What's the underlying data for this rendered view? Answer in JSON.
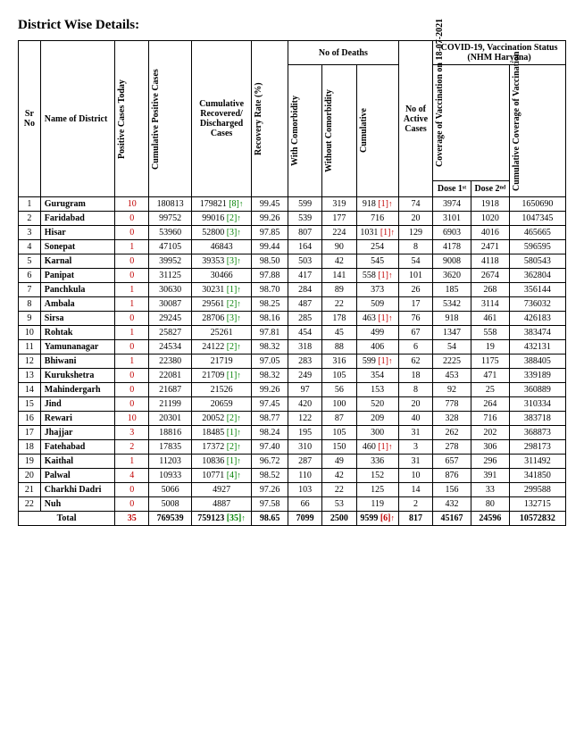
{
  "title": "District Wise Details:",
  "headers": {
    "sr": "Sr No",
    "district": "Name of District",
    "pct": "Positive Cases Today",
    "cpc": "Cumulative Positive Cases",
    "crd": "Cumulative Recovered/ Discharged Cases",
    "rr": "Recovery Rate (%)",
    "deaths_group": "No of Deaths",
    "wc": "With Comorbidity",
    "woc": "Without Comorbidity",
    "cum": "Cumulative",
    "active": "No of Active Cases",
    "vacc_group": "COVID-19, Vaccination Status (NHM Haryana)",
    "cov_on": "Coverage of Vaccination on 18-07-2021",
    "d1": "Dose 1ˢᵗ",
    "d2": "Dose 2ⁿᵈ",
    "ccv": "Cumulative Coverage of Vaccination"
  },
  "rows": [
    {
      "sr": 1,
      "dist": "Gurugram",
      "pct": "10",
      "pct_c": "red",
      "cpc": "180813",
      "crd": "179821",
      "crd_note": "[8]",
      "rr": "99.45",
      "wc": "599",
      "woc": "319",
      "cum": "918",
      "cum_note": "[1]",
      "cum_c": "red",
      "act": "74",
      "d1": "3974",
      "d2": "1918",
      "ccv": "1650690"
    },
    {
      "sr": 2,
      "dist": "Faridabad",
      "pct": "0",
      "pct_c": "red",
      "cpc": "99752",
      "crd": "99016",
      "crd_note": "[2]",
      "rr": "99.26",
      "wc": "539",
      "woc": "177",
      "cum": "716",
      "act": "20",
      "d1": "3101",
      "d2": "1020",
      "ccv": "1047345"
    },
    {
      "sr": 3,
      "dist": "Hisar",
      "pct": "0",
      "pct_c": "red",
      "cpc": "53960",
      "crd": "52800",
      "crd_note": "[3]",
      "rr": "97.85",
      "wc": "807",
      "woc": "224",
      "cum": "1031",
      "cum_note": "[1]",
      "cum_c": "red",
      "act": "129",
      "d1": "6903",
      "d2": "4016",
      "ccv": "465665"
    },
    {
      "sr": 4,
      "dist": "Sonepat",
      "pct": "1",
      "pct_c": "red",
      "cpc": "47105",
      "crd": "46843",
      "rr": "99.44",
      "wc": "164",
      "woc": "90",
      "cum": "254",
      "act": "8",
      "d1": "4178",
      "d2": "2471",
      "ccv": "596595"
    },
    {
      "sr": 5,
      "dist": "Karnal",
      "pct": "0",
      "pct_c": "red",
      "cpc": "39952",
      "crd": "39353",
      "crd_note": "[3]",
      "rr": "98.50",
      "wc": "503",
      "woc": "42",
      "cum": "545",
      "act": "54",
      "d1": "9008",
      "d2": "4118",
      "ccv": "580543"
    },
    {
      "sr": 6,
      "dist": "Panipat",
      "pct": "0",
      "pct_c": "red",
      "cpc": "31125",
      "crd": "30466",
      "rr": "97.88",
      "wc": "417",
      "woc": "141",
      "cum": "558",
      "cum_note": "[1]",
      "cum_c": "red",
      "act": "101",
      "d1": "3620",
      "d2": "2674",
      "ccv": "362804"
    },
    {
      "sr": 7,
      "dist": "Panchkula",
      "pct": "1",
      "pct_c": "red",
      "cpc": "30630",
      "crd": "30231",
      "crd_note": "[1]",
      "rr": "98.70",
      "wc": "284",
      "woc": "89",
      "cum": "373",
      "act": "26",
      "d1": "185",
      "d2": "268",
      "ccv": "356144"
    },
    {
      "sr": 8,
      "dist": "Ambala",
      "pct": "1",
      "pct_c": "red",
      "cpc": "30087",
      "crd": "29561",
      "crd_note": "[2]",
      "rr": "98.25",
      "wc": "487",
      "woc": "22",
      "cum": "509",
      "act": "17",
      "d1": "5342",
      "d2": "3114",
      "ccv": "736032"
    },
    {
      "sr": 9,
      "dist": "Sirsa",
      "pct": "0",
      "pct_c": "red",
      "cpc": "29245",
      "crd": "28706",
      "crd_note": "[3]",
      "rr": "98.16",
      "wc": "285",
      "woc": "178",
      "cum": "463",
      "cum_note": "[1]",
      "cum_c": "red",
      "act": "76",
      "d1": "918",
      "d2": "461",
      "ccv": "426183"
    },
    {
      "sr": 10,
      "dist": "Rohtak",
      "pct": "1",
      "pct_c": "red",
      "cpc": "25827",
      "crd": "25261",
      "rr": "97.81",
      "wc": "454",
      "woc": "45",
      "cum": "499",
      "act": "67",
      "d1": "1347",
      "d2": "558",
      "ccv": "383474"
    },
    {
      "sr": 11,
      "dist": "Yamunanagar",
      "pct": "0",
      "pct_c": "red",
      "cpc": "24534",
      "crd": "24122",
      "crd_note": "[2]",
      "rr": "98.32",
      "wc": "318",
      "woc": "88",
      "cum": "406",
      "act": "6",
      "d1": "54",
      "d2": "19",
      "ccv": "432131"
    },
    {
      "sr": 12,
      "dist": "Bhiwani",
      "pct": "1",
      "pct_c": "red",
      "cpc": "22380",
      "crd": "21719",
      "rr": "97.05",
      "wc": "283",
      "woc": "316",
      "cum": "599",
      "cum_note": "[1]",
      "cum_c": "red",
      "act": "62",
      "d1": "2225",
      "d2": "1175",
      "ccv": "388405"
    },
    {
      "sr": 13,
      "dist": "Kurukshetra",
      "pct": "0",
      "pct_c": "red",
      "cpc": "22081",
      "crd": "21709",
      "crd_note": "[1]",
      "rr": "98.32",
      "wc": "249",
      "woc": "105",
      "cum": "354",
      "act": "18",
      "d1": "453",
      "d2": "471",
      "ccv": "339189"
    },
    {
      "sr": 14,
      "dist": "Mahindergarh",
      "pct": "0",
      "pct_c": "red",
      "cpc": "21687",
      "crd": "21526",
      "rr": "99.26",
      "wc": "97",
      "woc": "56",
      "cum": "153",
      "act": "8",
      "d1": "92",
      "d2": "25",
      "ccv": "360889"
    },
    {
      "sr": 15,
      "dist": "Jind",
      "pct": "0",
      "pct_c": "red",
      "cpc": "21199",
      "crd": "20659",
      "rr": "97.45",
      "wc": "420",
      "woc": "100",
      "cum": "520",
      "act": "20",
      "d1": "778",
      "d2": "264",
      "ccv": "310334"
    },
    {
      "sr": 16,
      "dist": "Rewari",
      "pct": "10",
      "pct_c": "red",
      "cpc": "20301",
      "crd": "20052",
      "crd_note": "[2]",
      "rr": "98.77",
      "wc": "122",
      "woc": "87",
      "cum": "209",
      "act": "40",
      "d1": "328",
      "d2": "716",
      "ccv": "383718"
    },
    {
      "sr": 17,
      "dist": "Jhajjar",
      "pct": "3",
      "pct_c": "red",
      "cpc": "18816",
      "crd": "18485",
      "crd_note": "[1]",
      "rr": "98.24",
      "wc": "195",
      "woc": "105",
      "cum": "300",
      "act": "31",
      "d1": "262",
      "d2": "202",
      "ccv": "368873"
    },
    {
      "sr": 18,
      "dist": "Fatehabad",
      "pct": "2",
      "pct_c": "red",
      "cpc": "17835",
      "crd": "17372",
      "crd_note": "[2]",
      "rr": "97.40",
      "wc": "310",
      "woc": "150",
      "cum": "460",
      "cum_note": "[1]",
      "cum_c": "red",
      "act": "3",
      "d1": "278",
      "d2": "306",
      "ccv": "298173"
    },
    {
      "sr": 19,
      "dist": "Kaithal",
      "pct": "1",
      "pct_c": "red",
      "cpc": "11203",
      "crd": "10836",
      "crd_note": "[1]",
      "rr": "96.72",
      "wc": "287",
      "woc": "49",
      "cum": "336",
      "act": "31",
      "d1": "657",
      "d2": "296",
      "ccv": "311492"
    },
    {
      "sr": 20,
      "dist": "Palwal",
      "pct": "4",
      "pct_c": "red",
      "cpc": "10933",
      "crd": "10771",
      "crd_note": "[4]",
      "rr": "98.52",
      "wc": "110",
      "woc": "42",
      "cum": "152",
      "act": "10",
      "d1": "876",
      "d2": "391",
      "ccv": "341850"
    },
    {
      "sr": 21,
      "dist": "Charkhi Dadri",
      "pct": "0",
      "pct_c": "red",
      "cpc": "5066",
      "crd": "4927",
      "rr": "97.26",
      "wc": "103",
      "woc": "22",
      "cum": "125",
      "act": "14",
      "d1": "156",
      "d2": "33",
      "ccv": "299588"
    },
    {
      "sr": 22,
      "dist": "Nuh",
      "pct": "0",
      "pct_c": "red",
      "cpc": "5008",
      "crd": "4887",
      "rr": "97.58",
      "wc": "66",
      "woc": "53",
      "cum": "119",
      "act": "2",
      "d1": "432",
      "d2": "80",
      "ccv": "132715"
    }
  ],
  "total": {
    "label": "Total",
    "pct": "35",
    "pct_c": "red",
    "cpc": "769539",
    "crd": "759123",
    "crd_note": "[35]",
    "rr": "98.65",
    "wc": "7099",
    "woc": "2500",
    "cum": "9599",
    "cum_note": "[6]",
    "cum_c": "red",
    "act": "817",
    "d1": "45167",
    "d2": "24596",
    "ccv": "10572832"
  }
}
